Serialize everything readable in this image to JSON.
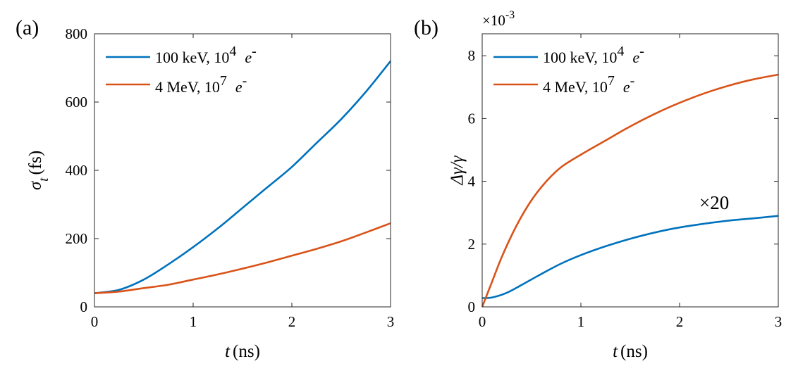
{
  "chart_data": [
    {
      "type": "line",
      "panel_label": "(a)",
      "xlabel_var": "t",
      "xlabel_unit": "(ns)",
      "ylabel_var": "σ",
      "ylabel_sub": "t",
      "ylabel_unit": "(fs)",
      "xlim": [
        0,
        3
      ],
      "ylim": [
        0,
        800
      ],
      "xticks": [
        0,
        1,
        2,
        3
      ],
      "yticks": [
        0,
        200,
        400,
        600,
        800
      ],
      "grid": false,
      "legend_position": "top-left",
      "series": [
        {
          "name": "100 keV, 10⁴ e⁻",
          "color": "#0072BD",
          "x": [
            0,
            0.25,
            0.5,
            0.75,
            1.0,
            1.25,
            1.5,
            1.75,
            2.0,
            2.25,
            2.5,
            2.75,
            3.0
          ],
          "y": [
            40,
            50,
            80,
            125,
            175,
            230,
            290,
            350,
            410,
            480,
            550,
            630,
            720
          ]
        },
        {
          "name": "4 MeV, 10⁷ e⁻",
          "color": "#D95319",
          "x": [
            0,
            0.25,
            0.5,
            0.75,
            1.0,
            1.25,
            1.5,
            1.75,
            2.0,
            2.25,
            2.5,
            2.75,
            3.0
          ],
          "y": [
            40,
            45,
            55,
            65,
            80,
            95,
            112,
            130,
            150,
            170,
            192,
            218,
            245
          ]
        }
      ]
    },
    {
      "type": "line",
      "panel_label": "(b)",
      "xlabel_var": "t",
      "xlabel_unit": "(ns)",
      "ylabel_text": "Δγ/γ",
      "y_exponent_base": "×10",
      "y_exponent": "-3",
      "annotation": "×20",
      "xlim": [
        0,
        3
      ],
      "ylim": [
        0,
        8.7
      ],
      "xticks": [
        0,
        1,
        2,
        3
      ],
      "yticks": [
        0,
        2,
        4,
        6,
        8
      ],
      "grid": false,
      "legend_position": "top-left",
      "series": [
        {
          "name": "100 keV, 10⁴ e⁻",
          "color": "#0072BD",
          "x": [
            0,
            0.1,
            0.25,
            0.4,
            0.6,
            0.8,
            1.0,
            1.25,
            1.5,
            1.75,
            2.0,
            2.25,
            2.5,
            2.75,
            3.0
          ],
          "y": [
            0.28,
            0.3,
            0.45,
            0.7,
            1.05,
            1.38,
            1.65,
            1.93,
            2.17,
            2.37,
            2.53,
            2.65,
            2.75,
            2.82,
            2.9
          ]
        },
        {
          "name": "4 MeV, 10⁷ e⁻",
          "color": "#D95319",
          "x": [
            0,
            0.1,
            0.2,
            0.35,
            0.5,
            0.65,
            0.8,
            1.0,
            1.25,
            1.5,
            1.75,
            2.0,
            2.25,
            2.5,
            2.75,
            3.0
          ],
          "y": [
            0,
            0.8,
            1.6,
            2.6,
            3.4,
            4.0,
            4.45,
            4.85,
            5.3,
            5.75,
            6.15,
            6.5,
            6.8,
            7.05,
            7.25,
            7.4
          ]
        }
      ]
    }
  ]
}
